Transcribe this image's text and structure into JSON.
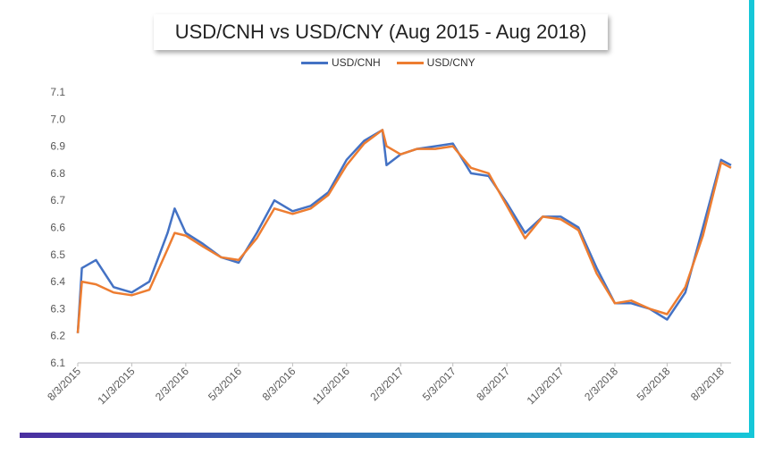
{
  "chart_data": {
    "type": "line",
    "title": "USD/CNH vs USD/CNY (Aug 2015 - Aug 2018)",
    "xlabel": "",
    "ylabel": "",
    "ylim": [
      6.1,
      7.1
    ],
    "yticks": [
      "7.1",
      "7.0",
      "6.9",
      "6.8",
      "6.7",
      "6.6",
      "6.5",
      "6.4",
      "6.3",
      "6.2",
      "6.1"
    ],
    "xticks": [
      "8/3/2015",
      "11/3/2015",
      "2/3/2016",
      "5/3/2016",
      "8/3/2016",
      "11/3/2016",
      "2/3/2017",
      "5/3/2017",
      "8/3/2017",
      "11/3/2017",
      "2/3/2018",
      "5/3/2018",
      "8/3/2018"
    ],
    "x_dates": [
      "8/3/2015",
      "8/10/2015",
      "9/3/2015",
      "10/3/2015",
      "11/3/2015",
      "12/3/2015",
      "1/3/2016",
      "1/15/2016",
      "2/3/2016",
      "3/3/2016",
      "4/3/2016",
      "5/3/2016",
      "6/3/2016",
      "7/3/2016",
      "8/3/2016",
      "9/3/2016",
      "10/3/2016",
      "11/3/2016",
      "12/3/2016",
      "1/3/2017",
      "1/10/2017",
      "2/3/2017",
      "3/3/2017",
      "4/3/2017",
      "5/3/2017",
      "6/3/2017",
      "7/3/2017",
      "8/3/2017",
      "9/3/2017",
      "10/3/2017",
      "11/3/2017",
      "12/3/2017",
      "1/3/2018",
      "2/3/2018",
      "3/3/2018",
      "4/3/2018",
      "5/3/2018",
      "6/3/2018",
      "7/3/2018",
      "8/3/2018",
      "8/20/2018"
    ],
    "series": [
      {
        "name": "USD/CNH",
        "color": "#4472C4",
        "values": [
          6.21,
          6.45,
          6.48,
          6.38,
          6.36,
          6.4,
          6.58,
          6.67,
          6.58,
          6.54,
          6.49,
          6.47,
          6.58,
          6.7,
          6.66,
          6.68,
          6.73,
          6.85,
          6.92,
          6.96,
          6.83,
          6.87,
          6.89,
          6.9,
          6.91,
          6.8,
          6.79,
          6.69,
          6.58,
          6.64,
          6.64,
          6.6,
          6.45,
          6.32,
          6.32,
          6.3,
          6.26,
          6.36,
          6.6,
          6.85,
          6.83
        ]
      },
      {
        "name": "USD/CNY",
        "color": "#ED7D31",
        "values": [
          6.21,
          6.4,
          6.39,
          6.36,
          6.35,
          6.37,
          6.52,
          6.58,
          6.57,
          6.53,
          6.49,
          6.48,
          6.56,
          6.67,
          6.65,
          6.67,
          6.72,
          6.83,
          6.91,
          6.96,
          6.9,
          6.87,
          6.89,
          6.89,
          6.9,
          6.82,
          6.8,
          6.68,
          6.56,
          6.64,
          6.63,
          6.59,
          6.43,
          6.32,
          6.33,
          6.3,
          6.28,
          6.38,
          6.57,
          6.84,
          6.82
        ]
      }
    ],
    "legend_position": "top-center",
    "grid": false
  },
  "decor": {
    "accent_bar_start": "#4a2fa0",
    "accent_bar_end": "#16c7d8"
  }
}
